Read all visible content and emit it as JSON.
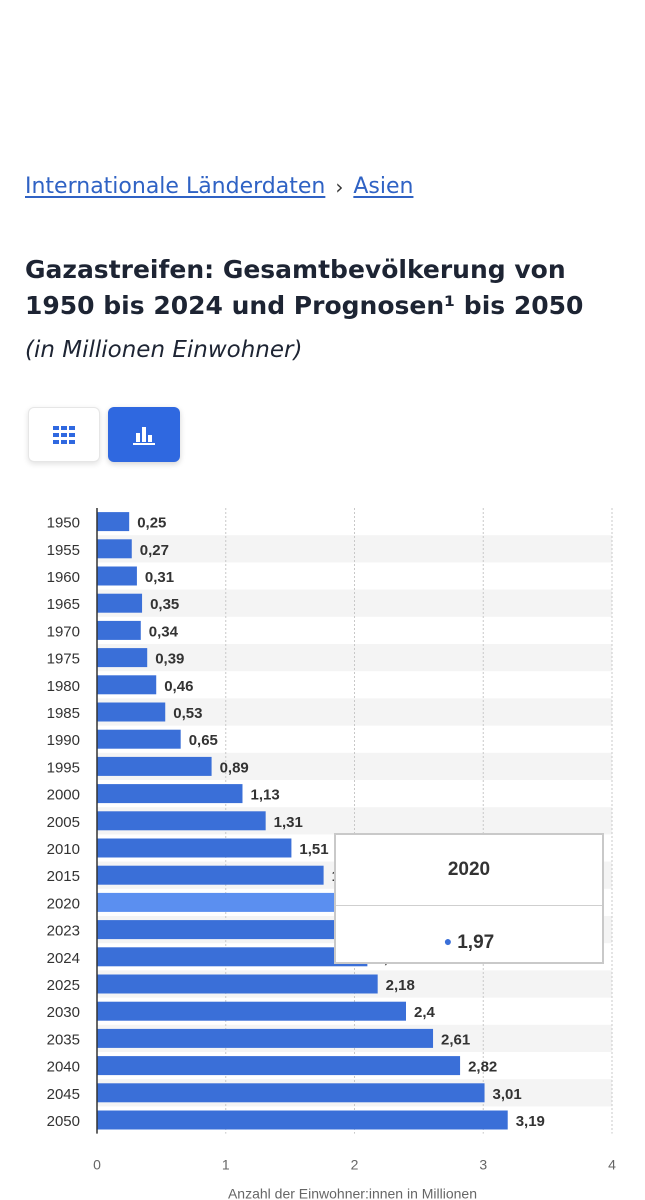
{
  "breadcrumb": {
    "item1": "Internationale Länderdaten",
    "separator": "›",
    "item2": "Asien"
  },
  "title": "Gazastreifen: Gesamtbevölkerung von 1950 bis 2024 und Prognosen¹ bis 2050",
  "subtitle": "(in Millionen Einwohner)",
  "view_toggle": {
    "active": "chart",
    "icons": [
      "table-grid-icon",
      "bar-chart-icon"
    ]
  },
  "colors": {
    "bar": "#3a6fd8",
    "bar_highlight": "#5b8ff0",
    "accent": "#2f68e0",
    "link": "#2f62c4"
  },
  "tooltip": {
    "title": "2020",
    "value": "1,97"
  },
  "chart_data": {
    "type": "bar",
    "orientation": "horizontal",
    "categories": [
      "1950",
      "1955",
      "1960",
      "1965",
      "1970",
      "1975",
      "1980",
      "1985",
      "1990",
      "1995",
      "2000",
      "2005",
      "2010",
      "2015",
      "2020",
      "2023",
      "2024",
      "2025",
      "2030",
      "2035",
      "2040",
      "2045",
      "2050"
    ],
    "values": [
      0.25,
      0.27,
      0.31,
      0.35,
      0.34,
      0.39,
      0.46,
      0.53,
      0.65,
      0.89,
      1.13,
      1.31,
      1.51,
      1.76,
      1.97,
      2.05,
      2.1,
      2.18,
      2.4,
      2.61,
      2.82,
      3.01,
      3.19
    ],
    "data_labels": [
      "0,25",
      "0,27",
      "0,31",
      "0,35",
      "0,34",
      "0,39",
      "0,46",
      "0,53",
      "0,65",
      "0,89",
      "1,13",
      "1,31",
      "1,51",
      "1,76",
      "1,97",
      "2,05",
      "2,1",
      "2,18",
      "2,4",
      "2,61",
      "2,82",
      "3,01",
      "3,19"
    ],
    "highlighted_category": "2020",
    "xlabel": "Anzahl der Einwohner:innen in Millionen",
    "ylabel": "",
    "xlim": [
      0,
      4
    ],
    "xticks": [
      "0",
      "1",
      "2",
      "3",
      "4"
    ],
    "grid": "vertical dotted"
  }
}
